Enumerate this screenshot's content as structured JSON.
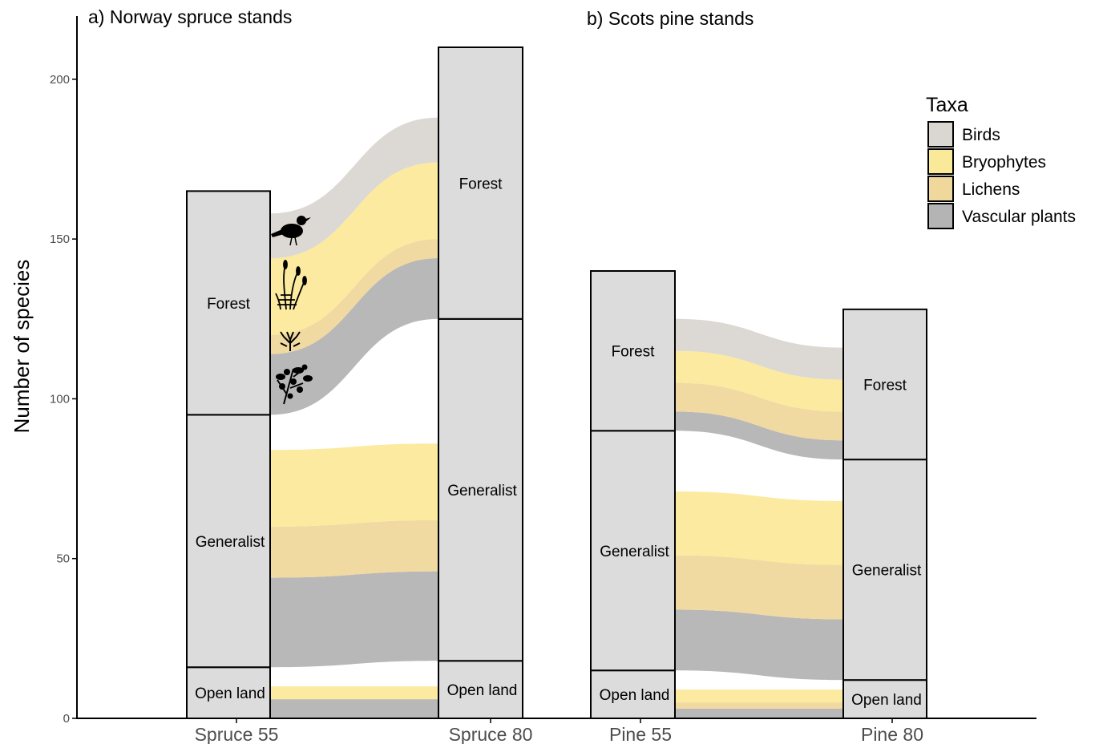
{
  "chart_data": {
    "type": "alluvial",
    "ylabel": "Number of species",
    "ylim": [
      0,
      210
    ],
    "yticks": [
      0,
      50,
      100,
      150,
      200
    ],
    "legend": {
      "title": "Taxa",
      "position": "top-right",
      "items": [
        {
          "label": "Birds",
          "color": "#dad6d1"
        },
        {
          "label": "Bryophytes",
          "color": "#fbe99a"
        },
        {
          "label": "Lichens",
          "color": "#f0d89c"
        },
        {
          "label": "Vascular plants",
          "color": "#b4b4b4"
        }
      ]
    },
    "panels": [
      {
        "title": "a)  Norway spruce stands",
        "stages": [
          {
            "label": "Spruce 55",
            "categories": [
              {
                "name": "Open land",
                "from": 0,
                "to": 16
              },
              {
                "name": "Generalist",
                "from": 16,
                "to": 95
              },
              {
                "name": "Forest",
                "from": 95,
                "to": 165
              }
            ]
          },
          {
            "label": "Spruce 80",
            "categories": [
              {
                "name": "Open land",
                "from": 0,
                "to": 18
              },
              {
                "name": "Generalist",
                "from": 18,
                "to": 125
              },
              {
                "name": "Forest",
                "from": 125,
                "to": 210
              }
            ]
          }
        ],
        "flows": [
          {
            "category": "Forest",
            "bands": [
              {
                "taxon": "Vascular plants",
                "left": [
                  95,
                  114
                ],
                "right": [
                  125,
                  144
                ]
              },
              {
                "taxon": "Lichens",
                "left": [
                  114,
                  120
                ],
                "right": [
                  144,
                  150
                ]
              },
              {
                "taxon": "Bryophytes",
                "left": [
                  120,
                  144
                ],
                "right": [
                  150,
                  174
                ]
              },
              {
                "taxon": "Birds",
                "left": [
                  144,
                  158
                ],
                "right": [
                  174,
                  188
                ]
              }
            ]
          },
          {
            "category": "Generalist",
            "bands": [
              {
                "taxon": "Vascular plants",
                "left": [
                  16,
                  44
                ],
                "right": [
                  18,
                  46
                ]
              },
              {
                "taxon": "Lichens",
                "left": [
                  44,
                  60
                ],
                "right": [
                  46,
                  62
                ]
              },
              {
                "taxon": "Bryophytes",
                "left": [
                  60,
                  84
                ],
                "right": [
                  62,
                  86
                ]
              }
            ]
          },
          {
            "category": "Open land",
            "bands": [
              {
                "taxon": "Vascular plants",
                "left": [
                  0,
                  6
                ],
                "right": [
                  0,
                  6
                ]
              },
              {
                "taxon": "Bryophytes",
                "left": [
                  6,
                  10
                ],
                "right": [
                  6,
                  10
                ]
              }
            ]
          }
        ]
      },
      {
        "title": "b) Scots pine stands",
        "stages": [
          {
            "label": "Pine 55",
            "categories": [
              {
                "name": "Open land",
                "from": 0,
                "to": 15
              },
              {
                "name": "Generalist",
                "from": 15,
                "to": 90
              },
              {
                "name": "Forest",
                "from": 90,
                "to": 140
              }
            ]
          },
          {
            "label": "Pine 80",
            "categories": [
              {
                "name": "Open land",
                "from": 0,
                "to": 12
              },
              {
                "name": "Generalist",
                "from": 12,
                "to": 81
              },
              {
                "name": "Forest",
                "from": 81,
                "to": 128
              }
            ]
          }
        ],
        "flows": [
          {
            "category": "Forest",
            "bands": [
              {
                "taxon": "Vascular plants",
                "left": [
                  90,
                  96
                ],
                "right": [
                  81,
                  87
                ]
              },
              {
                "taxon": "Lichens",
                "left": [
                  96,
                  105
                ],
                "right": [
                  87,
                  96
                ]
              },
              {
                "taxon": "Bryophytes",
                "left": [
                  105,
                  115
                ],
                "right": [
                  96,
                  106
                ]
              },
              {
                "taxon": "Birds",
                "left": [
                  115,
                  125
                ],
                "right": [
                  106,
                  116
                ]
              }
            ]
          },
          {
            "category": "Generalist",
            "bands": [
              {
                "taxon": "Vascular plants",
                "left": [
                  15,
                  34
                ],
                "right": [
                  12,
                  31
                ]
              },
              {
                "taxon": "Lichens",
                "left": [
                  34,
                  51
                ],
                "right": [
                  31,
                  48
                ]
              },
              {
                "taxon": "Bryophytes",
                "left": [
                  51,
                  71
                ],
                "right": [
                  48,
                  68
                ]
              }
            ]
          },
          {
            "category": "Open land",
            "bands": [
              {
                "taxon": "Vascular plants",
                "left": [
                  0,
                  3
                ],
                "right": [
                  0,
                  3
                ]
              },
              {
                "taxon": "Lichens",
                "left": [
                  3,
                  5
                ],
                "right": [
                  3,
                  5
                ]
              },
              {
                "taxon": "Bryophytes",
                "left": [
                  5,
                  9
                ],
                "right": [
                  5,
                  9
                ]
              }
            ]
          }
        ]
      }
    ],
    "icons": [
      "bird-silhouette",
      "moss-silhouette",
      "lichen-silhouette",
      "vascular-plant-silhouette"
    ]
  }
}
